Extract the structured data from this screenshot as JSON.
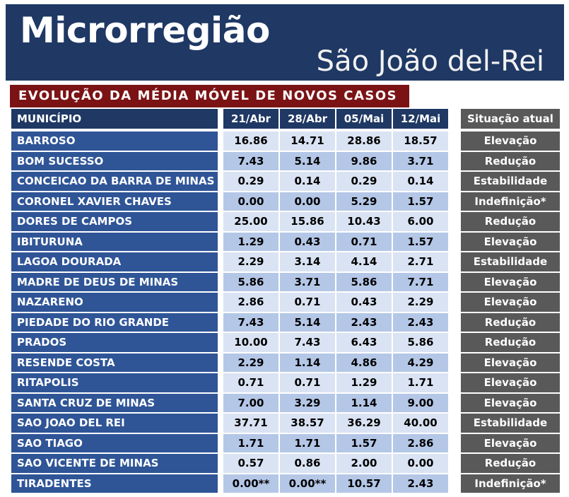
{
  "header": {
    "title": "Microrregião",
    "subtitle": "São João del-Rei"
  },
  "section_title": "EVOLUÇÃO DA MÉDIA MÓVEL DE NOVOS CASOS",
  "table": {
    "col_municipio": "MUNICÍPIO",
    "dates": [
      "21/Abr",
      "28/Abr",
      "05/Mai",
      "12/Mai"
    ],
    "col_situacao": "Situação atual",
    "rows": [
      {
        "municipio": "BARROSO",
        "v": [
          "16.86",
          "14.71",
          "28.86",
          "18.57"
        ],
        "situacao": "Elevação"
      },
      {
        "municipio": "BOM SUCESSO",
        "v": [
          "7.43",
          "5.14",
          "9.86",
          "3.71"
        ],
        "situacao": "Redução"
      },
      {
        "municipio": "CONCEICAO DA BARRA DE MINAS",
        "v": [
          "0.29",
          "0.14",
          "0.29",
          "0.14"
        ],
        "situacao": "Estabilidade"
      },
      {
        "municipio": "CORONEL XAVIER CHAVES",
        "v": [
          "0.00",
          "0.00",
          "5.29",
          "1.57"
        ],
        "situacao": "Indefinição*"
      },
      {
        "municipio": "DORES DE CAMPOS",
        "v": [
          "25.00",
          "15.86",
          "10.43",
          "6.00"
        ],
        "situacao": "Redução"
      },
      {
        "municipio": "IBITURUNA",
        "v": [
          "1.29",
          "0.43",
          "0.71",
          "1.57"
        ],
        "situacao": "Elevação"
      },
      {
        "municipio": "LAGOA DOURADA",
        "v": [
          "2.29",
          "3.14",
          "4.14",
          "2.71"
        ],
        "situacao": "Estabilidade"
      },
      {
        "municipio": "MADRE DE DEUS DE MINAS",
        "v": [
          "5.86",
          "3.71",
          "5.86",
          "7.71"
        ],
        "situacao": "Elevação"
      },
      {
        "municipio": "NAZARENO",
        "v": [
          "2.86",
          "0.71",
          "0.43",
          "2.29"
        ],
        "situacao": "Elevação"
      },
      {
        "municipio": "PIEDADE DO RIO GRANDE",
        "v": [
          "7.43",
          "5.14",
          "2.43",
          "2.43"
        ],
        "situacao": "Redução"
      },
      {
        "municipio": "PRADOS",
        "v": [
          "10.00",
          "7.43",
          "6.43",
          "5.86"
        ],
        "situacao": "Redução"
      },
      {
        "municipio": "RESENDE COSTA",
        "v": [
          "2.29",
          "1.14",
          "4.86",
          "4.29"
        ],
        "situacao": "Elevação"
      },
      {
        "municipio": "RITAPOLIS",
        "v": [
          "0.71",
          "0.71",
          "1.29",
          "1.71"
        ],
        "situacao": "Elevação"
      },
      {
        "municipio": "SANTA CRUZ DE MINAS",
        "v": [
          "7.00",
          "3.29",
          "1.14",
          "9.00"
        ],
        "situacao": "Elevação"
      },
      {
        "municipio": "SAO JOAO DEL REI",
        "v": [
          "37.71",
          "38.57",
          "36.29",
          "40.00"
        ],
        "situacao": "Estabilidade"
      },
      {
        "municipio": "SAO TIAGO",
        "v": [
          "1.71",
          "1.71",
          "1.57",
          "2.86"
        ],
        "situacao": "Elevação"
      },
      {
        "municipio": "SAO VICENTE DE MINAS",
        "v": [
          "0.57",
          "0.86",
          "2.00",
          "0.00"
        ],
        "situacao": "Redução"
      },
      {
        "municipio": "TIRADENTES",
        "v": [
          "0.00**",
          "0.00**",
          "10.57",
          "2.43"
        ],
        "situacao": "Indefinição*"
      }
    ]
  }
}
